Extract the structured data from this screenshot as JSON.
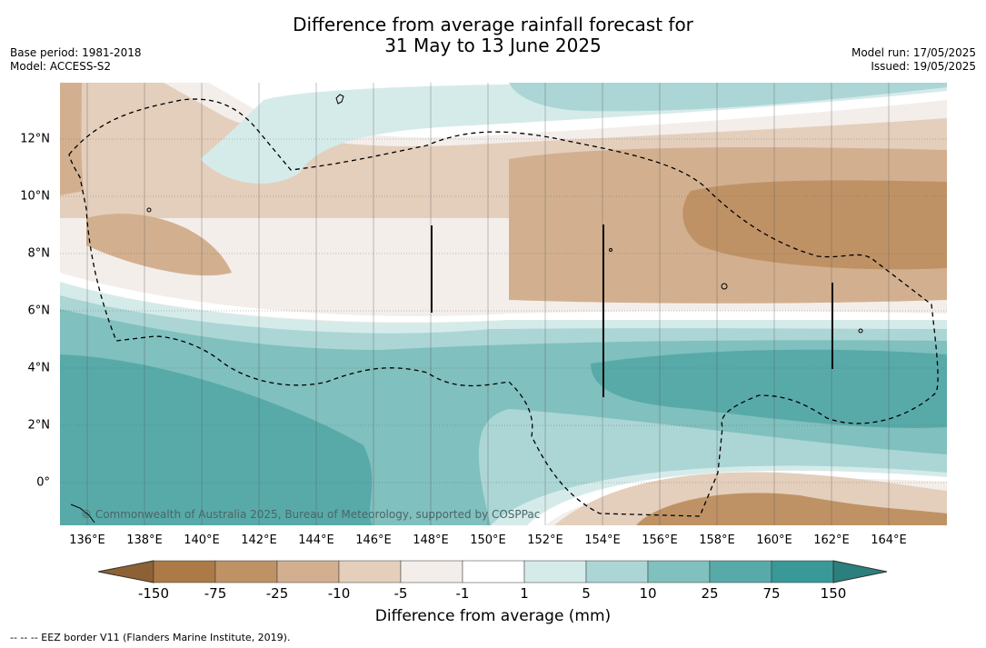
{
  "title_line1": "Difference from average rainfall forecast for",
  "title_line2": "31 May to 13 June 2025",
  "meta_left": [
    "Base period: 1981-2018",
    "Model: ACCESS-S2"
  ],
  "meta_right": [
    "Model run: 17/05/2025",
    "Issued: 19/05/2025"
  ],
  "x_ticks": [
    "136°E",
    "138°E",
    "140°E",
    "142°E",
    "144°E",
    "146°E",
    "148°E",
    "150°E",
    "152°E",
    "154°E",
    "156°E",
    "158°E",
    "160°E",
    "162°E",
    "164°E"
  ],
  "y_ticks": [
    "12°N",
    "10°N",
    "8°N",
    "6°N",
    "4°N",
    "2°N",
    "0°"
  ],
  "copyright": "© Commonwealth of Australia 2025, Bureau of Meteorology, supported by COSPPac",
  "legend": {
    "title": "Difference from average (mm)",
    "ticks": [
      "-150",
      "-75",
      "-25",
      "-10",
      "-5",
      "-1",
      "1",
      "5",
      "10",
      "25",
      "75",
      "150"
    ],
    "colors": [
      "#ab7a46",
      "#bf9266",
      "#d2b08f",
      "#e4cfbc",
      "#f4eeea",
      "#ffffff",
      "#d5ebea",
      "#abd6d5",
      "#80c0be",
      "#58aaa9",
      "#389997"
    ],
    "extend_low_color": "#8e6134",
    "extend_high_color": "#2b7f7d"
  },
  "footnote": "-- -- -- EEZ border V11 (Flanders Marine Institute, 2019)."
}
